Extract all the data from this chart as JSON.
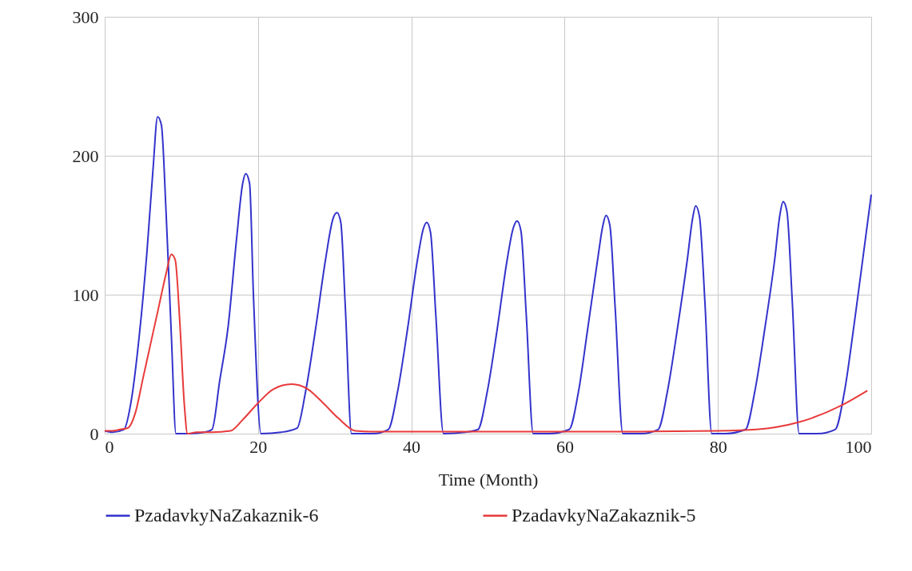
{
  "chart_data": {
    "type": "line",
    "xlabel": "Time (Month)",
    "xlim": [
      0,
      100
    ],
    "xticks": [
      0,
      20,
      40,
      60,
      80,
      100
    ],
    "ylim": [
      0,
      300
    ],
    "yticks": [
      0,
      100,
      200,
      300
    ],
    "grid": true,
    "legend": "bottom",
    "marker": "none",
    "line_style": "solid",
    "series": [
      {
        "name": "PzadavkyNaZakaznik-6",
        "color": "#3333cc",
        "x": [
          0,
          1,
          2.5,
          3.5,
          4.5,
          5.5,
          6.3,
          6.9,
          7.4,
          8,
          8.7,
          9.3,
          11,
          13,
          14,
          15,
          16.1,
          17.2,
          18,
          18.4,
          18.9,
          19.4,
          20.4,
          23,
          25.1,
          26.2,
          27.5,
          28.8,
          29.8,
          30.3,
          30.8,
          31.4,
          32.2,
          35,
          37,
          38.2,
          39.5,
          40.8,
          41.6,
          42,
          42.5,
          43.2,
          44.2,
          47,
          48.7,
          49.9,
          51.2,
          52.5,
          53.3,
          53.8,
          54.3,
          55,
          55.9,
          58,
          60.6,
          61.8,
          63,
          64.3,
          65,
          65.4,
          65.9,
          66.6,
          67.6,
          70,
          72.2,
          73.4,
          74.7,
          76,
          76.7,
          77.1,
          77.6,
          78.3,
          79.2,
          81,
          83.6,
          84.8,
          86.1,
          87.4,
          88.1,
          88.5,
          89,
          89.7,
          90.6,
          93,
          95.3,
          96.5,
          97.8,
          99,
          100
        ],
        "values": [
          2,
          1,
          3,
          25,
          70,
          130,
          190,
          228,
          222,
          160,
          70,
          0,
          0,
          1,
          3,
          38,
          77,
          140,
          180,
          187,
          180,
          100,
          0,
          1,
          4,
          30,
          75,
          125,
          155,
          159,
          152,
          90,
          0,
          0,
          3,
          30,
          75,
          125,
          148,
          152,
          145,
          85,
          0,
          1,
          3,
          30,
          75,
          125,
          148,
          153,
          146,
          85,
          0,
          0,
          3,
          30,
          75,
          125,
          150,
          157,
          150,
          90,
          0,
          0,
          3,
          30,
          75,
          125,
          155,
          164,
          156,
          95,
          0,
          0,
          3,
          30,
          75,
          125,
          158,
          167,
          160,
          95,
          0,
          0,
          3,
          30,
          80,
          130,
          172
        ]
      },
      {
        "name": "PzadavkyNaZakaznik-5",
        "color": "#e83a3a",
        "x": [
          0,
          1,
          2,
          3,
          4,
          5,
          6,
          7,
          8,
          8.7,
          9.2,
          9.8,
          10.4,
          10.8,
          12,
          14,
          16.4,
          18,
          20,
          22,
          24.4,
          26.5,
          28.5,
          30.5,
          32.7,
          35,
          50,
          70,
          80,
          85,
          90.4,
          96,
          99.5
        ],
        "values": [
          2,
          2,
          3,
          4,
          15,
          40,
          65,
          90,
          115,
          129,
          125,
          80,
          20,
          0,
          1,
          1,
          2,
          10,
          22,
          32,
          35.6,
          32,
          22,
          11,
          2,
          1.5,
          1.5,
          1.5,
          2,
          3,
          8,
          20,
          31
        ]
      }
    ]
  }
}
